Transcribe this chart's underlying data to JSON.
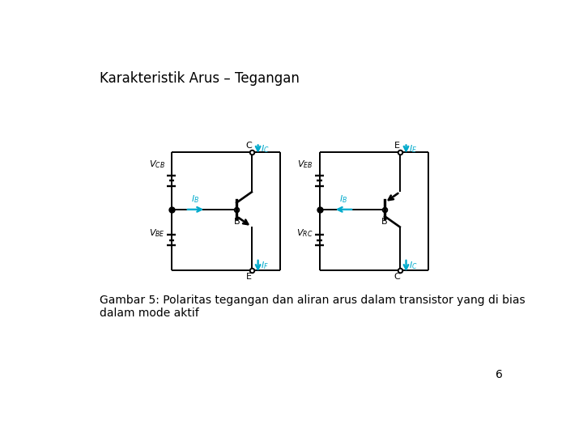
{
  "title": "Karakteristik Arus – Tegangan",
  "caption": "Gambar 5: Polaritas tegangan dan aliran arus dalam transistor yang di bias\ndalam mode aktif",
  "page_number": "6",
  "bg_color": "#ffffff",
  "title_fontsize": 12,
  "caption_fontsize": 10,
  "page_fontsize": 10,
  "line_color": "#000000",
  "arrow_color": "#00aacc",
  "lw": 1.4
}
